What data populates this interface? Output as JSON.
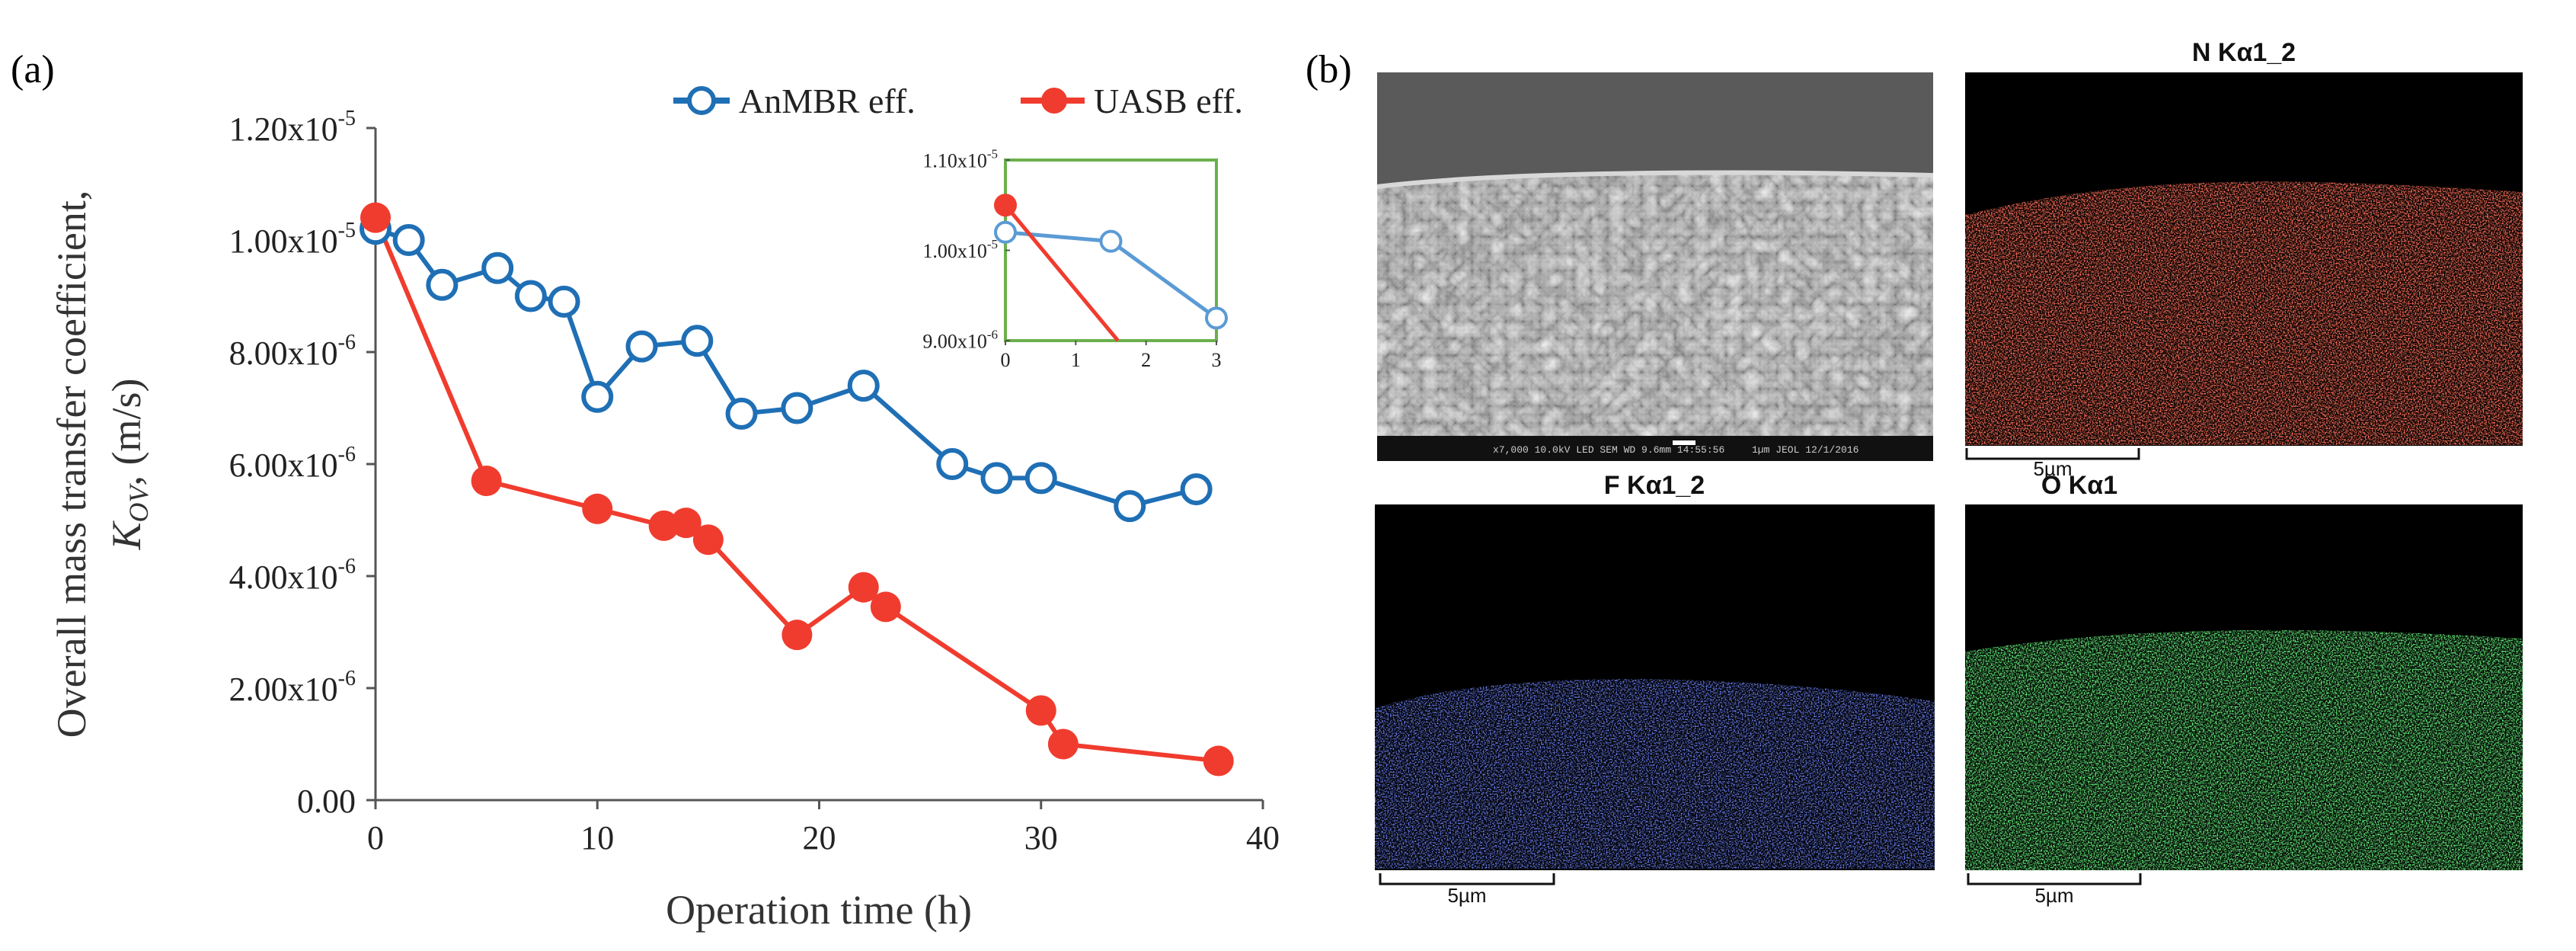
{
  "panel_a_label": "(a)",
  "panel_b_label": "(b)",
  "chart_data": [
    {
      "type": "line",
      "xlabel": "Operation time (h)",
      "ylabel_line1": "Overall mass transfer coefficient,",
      "ylabel_line2_k": "K",
      "ylabel_line2_sub": "OV",
      "ylabel_line2_rest": ", (m/s)",
      "xlim": [
        0,
        40
      ],
      "ylim": [
        0,
        1.2e-05
      ],
      "x_ticks": [
        {
          "value": 0,
          "label": "0"
        },
        {
          "value": 10,
          "label": "10"
        },
        {
          "value": 20,
          "label": "20"
        },
        {
          "value": 30,
          "label": "30"
        },
        {
          "value": 40,
          "label": "40"
        }
      ],
      "y_ticks": [
        {
          "value": 0,
          "label": "0.00",
          "exp": ""
        },
        {
          "value": 2e-06,
          "label": "2.00x10",
          "exp": "-6"
        },
        {
          "value": 4e-06,
          "label": "4.00x10",
          "exp": "-6"
        },
        {
          "value": 6e-06,
          "label": "6.00x10",
          "exp": "-6"
        },
        {
          "value": 8e-06,
          "label": "8.00x10",
          "exp": "-6"
        },
        {
          "value": 1e-05,
          "label": "1.00x10",
          "exp": "-5"
        },
        {
          "value": 1.2e-05,
          "label": "1.20x10",
          "exp": "-5"
        }
      ],
      "legend_position": "top-right",
      "series": [
        {
          "name": "AnMBR eff.",
          "color": "#1f6fb5",
          "marker": "open-circle",
          "x": [
            0,
            1.5,
            3,
            5.5,
            7,
            8.5,
            10,
            12,
            14.5,
            16.5,
            19,
            22,
            26,
            28,
            30,
            34,
            37
          ],
          "y": [
            1.02e-05,
            1e-05,
            9.2e-06,
            9.5e-06,
            9e-06,
            8.9e-06,
            7.2e-06,
            8.1e-06,
            8.2e-06,
            6.9e-06,
            7e-06,
            7.4e-06,
            6e-06,
            5.75e-06,
            5.75e-06,
            5.25e-06,
            5.55e-06
          ]
        },
        {
          "name": "UASB eff.",
          "color": "#f03c2e",
          "marker": "filled-circle",
          "x": [
            0,
            5,
            10,
            13,
            14,
            15,
            19,
            22,
            23,
            30,
            31,
            38
          ],
          "y": [
            1.04e-05,
            5.7e-06,
            5.2e-06,
            4.9e-06,
            4.95e-06,
            4.65e-06,
            2.95e-06,
            3.8e-06,
            3.45e-06,
            1.6e-06,
            1e-06,
            7e-07
          ]
        }
      ]
    },
    {
      "type": "line",
      "role": "inset",
      "frame_color": "#6ab04c",
      "xlim": [
        0,
        3
      ],
      "ylim": [
        9e-06,
        1.1e-05
      ],
      "x_ticks": [
        {
          "value": 0,
          "label": "0"
        },
        {
          "value": 1,
          "label": "1"
        },
        {
          "value": 2,
          "label": "2"
        },
        {
          "value": 3,
          "label": "3"
        }
      ],
      "y_ticks": [
        {
          "value": 9e-06,
          "label": "9.00x10",
          "exp": "-6"
        },
        {
          "value": 1e-05,
          "label": "1.00x10",
          "exp": "-5"
        },
        {
          "value": 1.1e-05,
          "label": "1.10x10",
          "exp": "-5"
        }
      ],
      "series": [
        {
          "name": "AnMBR eff.",
          "color": "#5b9bd5",
          "marker": "open-circle",
          "x": [
            0,
            1.5,
            3
          ],
          "y": [
            1.02e-05,
            1.01e-05,
            9.25e-06
          ]
        },
        {
          "name": "UASB eff.",
          "color": "#f03c2e",
          "marker": "filled-circle",
          "x": [
            0,
            1.6
          ],
          "y": [
            1.05e-05,
            9e-06
          ],
          "markers_on": [
            0
          ]
        }
      ]
    }
  ],
  "images": [
    {
      "title": "",
      "scalebar": "",
      "kind": "sem",
      "color": "#9a9a9a",
      "sem_footer": "x7,000     10.0kV LED     SEM     WD 9.6mm 14:55:56",
      "sem_footer_right": "1µm     JEOL     12/1/2016"
    },
    {
      "title": "N Kα1_2",
      "scalebar": "5µm",
      "kind": "map",
      "color": "#ff2a1a"
    },
    {
      "title": "F Kα1_2",
      "scalebar": "5µm",
      "kind": "map",
      "color": "#2a3cff"
    },
    {
      "title": "O Kα1",
      "scalebar": "5µm",
      "kind": "map",
      "color": "#22dd33"
    }
  ]
}
